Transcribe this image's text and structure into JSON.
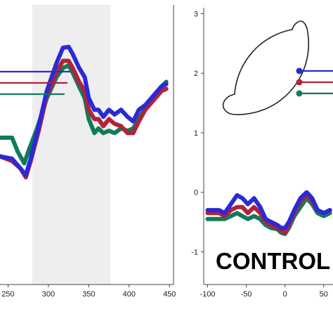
{
  "chart_data": [
    {
      "type": "line",
      "panel": "left",
      "x_ticks": [
        250,
        300,
        350,
        400,
        450
      ],
      "xlim": [
        240,
        455
      ],
      "ylim": [
        -2.8,
        3.2
      ],
      "shaded_interval": [
        280,
        377
      ],
      "grid": false,
      "colors": {
        "blue": "#2a2ad6",
        "red": "#b3213a",
        "green": "#117a5c"
      },
      "series": [
        {
          "color_key": "blue",
          "x": [
            240,
            255,
            265,
            272,
            278,
            288,
            298,
            310,
            318,
            325,
            330,
            338,
            345,
            350,
            357,
            362,
            368,
            375,
            382,
            390,
            398,
            405,
            412,
            420,
            430,
            440,
            446
          ],
          "y": [
            -0.05,
            -0.1,
            -0.3,
            -0.45,
            -0.1,
            0.6,
            1.35,
            1.95,
            2.28,
            2.3,
            2.15,
            1.85,
            1.65,
            1.2,
            0.95,
            0.95,
            0.8,
            0.95,
            0.85,
            0.95,
            0.8,
            0.7,
            0.95,
            1.05,
            1.25,
            1.45,
            1.5
          ]
        },
        {
          "color_key": "red",
          "x": [
            240,
            255,
            265,
            272,
            278,
            288,
            298,
            310,
            318,
            325,
            330,
            338,
            345,
            350,
            357,
            362,
            368,
            375,
            382,
            390,
            398,
            405,
            412,
            420,
            430,
            440,
            446
          ],
          "y": [
            -0.05,
            -0.15,
            -0.3,
            -0.5,
            -0.15,
            0.5,
            1.25,
            1.75,
            2.0,
            2.0,
            1.85,
            1.55,
            1.35,
            0.95,
            0.75,
            0.75,
            0.6,
            0.75,
            0.65,
            0.6,
            0.45,
            0.45,
            0.7,
            0.95,
            1.15,
            1.35,
            1.4
          ]
        },
        {
          "color_key": "green",
          "x": [
            240,
            255,
            262,
            270,
            276,
            286,
            298,
            310,
            318,
            325,
            330,
            338,
            345,
            350,
            357,
            362,
            368,
            375,
            382,
            390,
            398,
            405,
            412,
            420,
            430,
            440,
            446
          ],
          "y": [
            0.35,
            0.35,
            0.05,
            -0.2,
            0.1,
            0.55,
            1.2,
            1.65,
            1.85,
            1.9,
            1.75,
            1.45,
            1.2,
            0.75,
            0.45,
            0.55,
            0.45,
            0.5,
            0.45,
            0.55,
            0.5,
            0.55,
            0.75,
            1.0,
            1.25,
            1.45,
            1.55
          ]
        }
      ]
    },
    {
      "type": "line",
      "panel": "right",
      "x_ticks": [
        -100,
        -50,
        0,
        50
      ],
      "y_ticks": [
        -1,
        0,
        1,
        2,
        3
      ],
      "xlim": [
        -105,
        62
      ],
      "ylim": [
        -1.55,
        3.1
      ],
      "grid": false,
      "colors": {
        "blue": "#2a2ad6",
        "red": "#b3213a",
        "green": "#117a5c"
      },
      "series": [
        {
          "color_key": "blue",
          "x": [
            -100,
            -92,
            -85,
            -78,
            -70,
            -62,
            -55,
            -48,
            -40,
            -32,
            -25,
            -18,
            -10,
            -5,
            0,
            5,
            12,
            20,
            28,
            35,
            42,
            50,
            58
          ],
          "y": [
            -0.3,
            -0.3,
            -0.3,
            -0.35,
            -0.2,
            -0.05,
            -0.1,
            -0.2,
            -0.1,
            -0.25,
            -0.45,
            -0.5,
            -0.55,
            -0.6,
            -0.6,
            -0.5,
            -0.3,
            -0.1,
            0.0,
            -0.1,
            -0.3,
            -0.35,
            -0.3
          ]
        },
        {
          "color_key": "red",
          "x": [
            -100,
            -92,
            -85,
            -78,
            -70,
            -62,
            -55,
            -48,
            -40,
            -32,
            -25,
            -18,
            -10,
            -5,
            0,
            5,
            12,
            20,
            28,
            35,
            42,
            50,
            58
          ],
          "y": [
            -0.35,
            -0.35,
            -0.35,
            -0.4,
            -0.3,
            -0.25,
            -0.25,
            -0.35,
            -0.25,
            -0.35,
            -0.5,
            -0.55,
            -0.6,
            -0.65,
            -0.68,
            -0.55,
            -0.35,
            -0.15,
            -0.05,
            -0.15,
            -0.3,
            -0.35,
            -0.3
          ]
        },
        {
          "color_key": "green",
          "x": [
            -100,
            -92,
            -85,
            -78,
            -70,
            -62,
            -55,
            -48,
            -40,
            -32,
            -25,
            -18,
            -10,
            -5,
            0,
            5,
            12,
            20,
            28,
            35,
            42,
            50,
            58
          ],
          "y": [
            -0.45,
            -0.45,
            -0.45,
            -0.45,
            -0.4,
            -0.35,
            -0.4,
            -0.45,
            -0.4,
            -0.45,
            -0.55,
            -0.6,
            -0.62,
            -0.68,
            -0.7,
            -0.6,
            -0.4,
            -0.25,
            -0.1,
            -0.2,
            -0.35,
            -0.4,
            -0.35
          ]
        }
      ],
      "annotation": "CONTROL"
    }
  ]
}
